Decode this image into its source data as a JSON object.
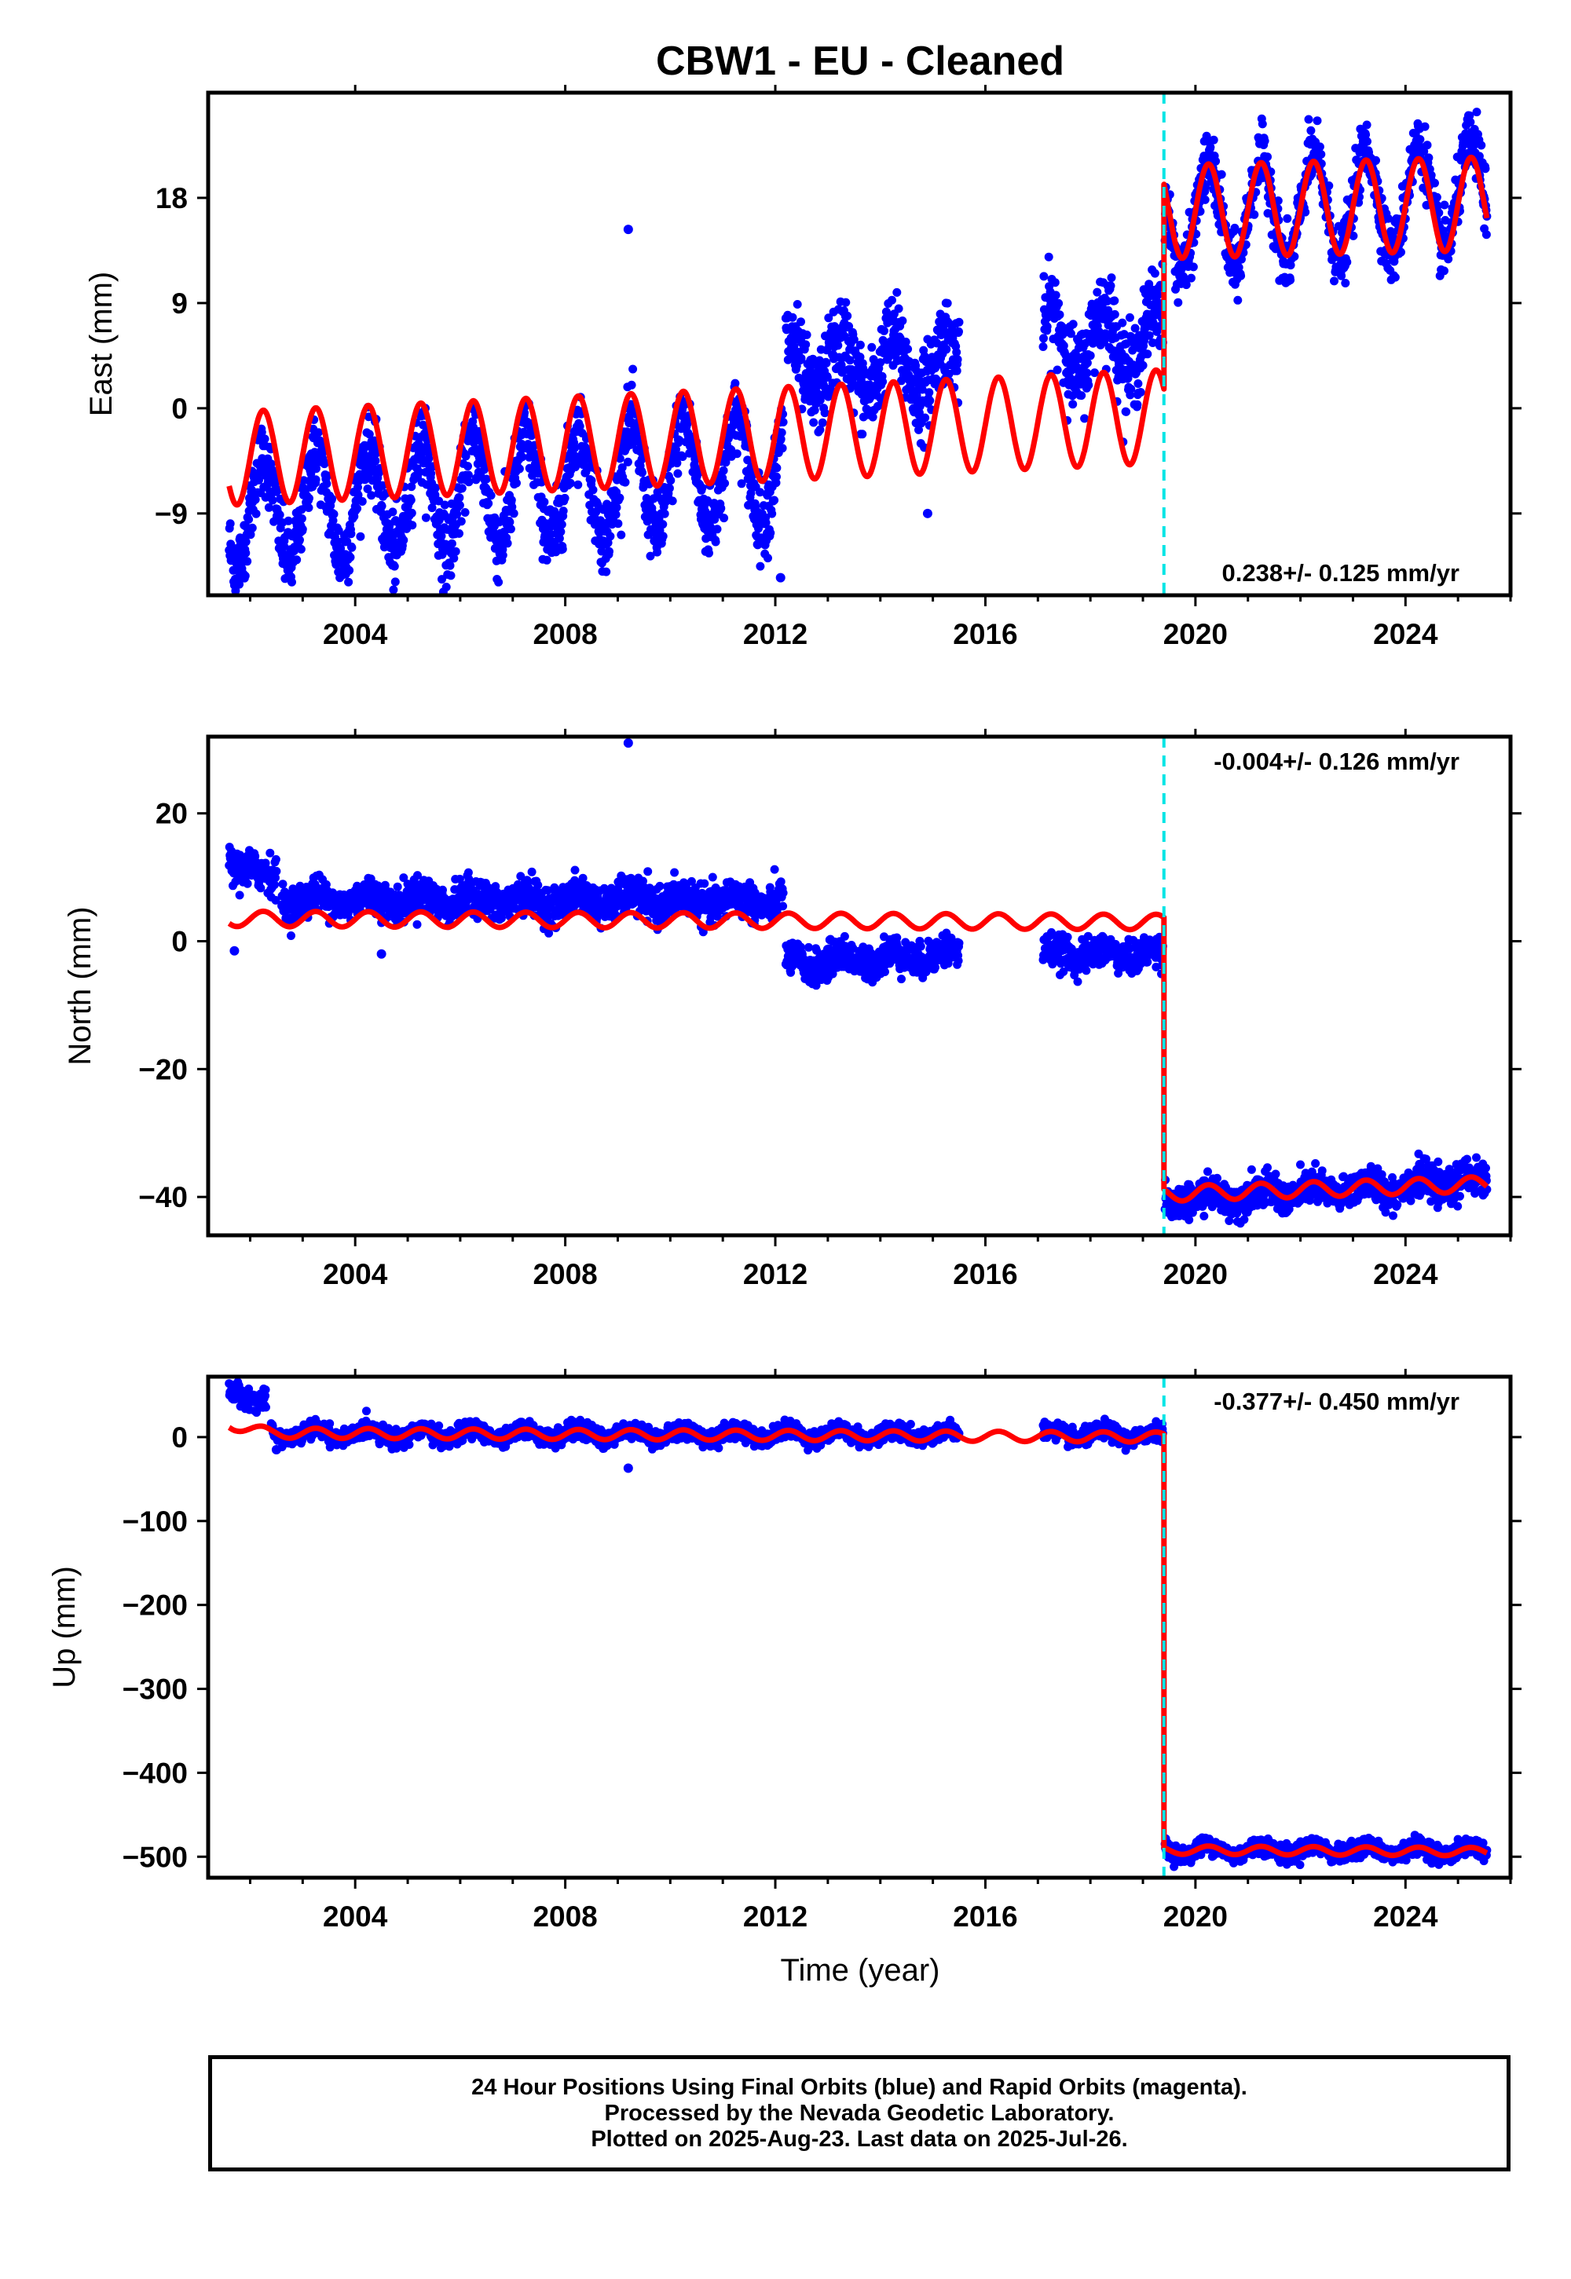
{
  "title": "CBW1  - EU - Cleaned",
  "xlabel": "Time (year)",
  "colors": {
    "data": "#0000ff",
    "model": "#ff0000",
    "offset": "#00e5e5",
    "frame": "#000000"
  },
  "footer": {
    "line1": "24 Hour Positions Using Final Orbits (blue) and Rapid Orbits (magenta).",
    "line2": "Processed by the Nevada Geodetic Laboratory.",
    "line3": "Plotted on 2025-Aug-23. Last data on 2025-Jul-26."
  },
  "chart_data": [
    {
      "type": "scatter",
      "panel": "east",
      "ylabel": "East (mm)",
      "xlim": [
        2001.2,
        2026.0
      ],
      "ylim": [
        -16,
        27
      ],
      "xticks": [
        2004,
        2008,
        2012,
        2016,
        2020,
        2024
      ],
      "yticks": [
        18,
        9,
        0,
        -9
      ],
      "rate_label": "0.238+/- 0.125 mm/yr",
      "rate_position": "bottom-right",
      "offset_epoch": 2019.4,
      "series": [
        {
          "name": "Final Orbits",
          "segments": [
            {
              "x": [
                2001.6,
                2012.15
              ],
              "amplitude": 4.5,
              "trend": [
                -9.0,
                -5.0
              ],
              "spread": 1.6
            },
            {
              "x": [
                2012.2,
                2015.5
              ],
              "amplitude": 2.5,
              "trend": [
                3.5,
                3.5
              ],
              "spread": 1.8
            },
            {
              "x": [
                2017.1,
                2019.38
              ],
              "amplitude": 2.8,
              "trend": [
                5.5,
                6.0
              ],
              "spread": 1.8
            },
            {
              "x": [
                2019.42,
                2025.55
              ],
              "amplitude": 4.5,
              "trend": [
                16.0,
                18.5
              ],
              "spread": 1.3
            }
          ],
          "outliers": [
            [
              2009.2,
              15.3
            ],
            [
              2014.9,
              -9.0
            ],
            [
              2012.1,
              -14.5
            ]
          ]
        }
      ],
      "model": {
        "segments": [
          {
            "x": [
              2001.6,
              2019.4
            ],
            "mean": [
              -4.3,
              -0.7
            ],
            "amplitude": [
              4.0,
              4.0
            ]
          },
          {
            "x": [
              2019.4,
              2025.55
            ],
            "mean": [
              16.8,
              17.5
            ],
            "amplitude": [
              4.0,
              4.0
            ]
          }
        ]
      }
    },
    {
      "type": "scatter",
      "panel": "north",
      "ylabel": "North (mm)",
      "xlim": [
        2001.2,
        2026.0
      ],
      "ylim": [
        -46,
        32
      ],
      "xticks": [
        2004,
        2008,
        2012,
        2016,
        2020,
        2024
      ],
      "yticks": [
        20,
        0,
        -20,
        -40
      ],
      "rate_label": "-0.004+/- 0.126 mm/yr",
      "rate_position": "top-right",
      "offset_epoch": 2019.4,
      "series": [
        {
          "name": "Final Orbits",
          "segments": [
            {
              "x": [
                2001.6,
                2002.5
              ],
              "amplitude": 0.5,
              "trend": [
                12.0,
                10.0
              ],
              "spread": 1.5
            },
            {
              "x": [
                2002.6,
                2012.15
              ],
              "amplitude": 1.0,
              "trend": [
                6.5,
                6.3
              ],
              "spread": 1.4
            },
            {
              "x": [
                2012.2,
                2015.5
              ],
              "amplitude": 1.0,
              "trend": [
                -3.5,
                -2.0
              ],
              "spread": 1.3
            },
            {
              "x": [
                2017.1,
                2019.38
              ],
              "amplitude": 0.8,
              "trend": [
                -2.0,
                -2.0
              ],
              "spread": 1.2
            },
            {
              "x": [
                2019.42,
                2025.55
              ],
              "amplitude": 1.0,
              "trend": [
                -40.5,
                -37.5
              ],
              "spread": 1.3
            }
          ],
          "outliers": [
            [
              2009.2,
              31.0
            ],
            [
              2001.7,
              -1.5
            ],
            [
              2004.5,
              -2.0
            ]
          ]
        }
      ],
      "model": {
        "segments": [
          {
            "x": [
              2001.6,
              2019.4
            ],
            "mean": [
              3.5,
              3.0
            ],
            "amplitude": [
              1.2,
              1.2
            ]
          },
          {
            "x": [
              2019.4,
              2025.55
            ],
            "mean": [
              -39.5,
              -38.0
            ],
            "amplitude": [
              1.2,
              1.2
            ]
          }
        ]
      }
    },
    {
      "type": "scatter",
      "panel": "up",
      "ylabel": "Up (mm)",
      "xlim": [
        2001.2,
        2026.0
      ],
      "ylim": [
        -525,
        72
      ],
      "xticks": [
        2004,
        2008,
        2012,
        2016,
        2020,
        2024
      ],
      "yticks": [
        0,
        -100,
        -200,
        -300,
        -400,
        -500
      ],
      "rate_label": "-0.377+/- 0.450 mm/yr",
      "rate_position": "top-right",
      "offset_epoch": 2019.4,
      "series": [
        {
          "name": "Final Orbits",
          "segments": [
            {
              "x": [
                2001.6,
                2002.3
              ],
              "amplitude": 0,
              "trend": [
                55.0,
                40.0
              ],
              "spread": 6
            },
            {
              "x": [
                2002.4,
                2015.5
              ],
              "amplitude": 6,
              "trend": [
                4.0,
                3.0
              ],
              "spread": 5
            },
            {
              "x": [
                2017.1,
                2019.38
              ],
              "amplitude": 6,
              "trend": [
                3.0,
                2.0
              ],
              "spread": 5
            },
            {
              "x": [
                2019.42,
                2025.55
              ],
              "amplitude": 6,
              "trend": [
                -492,
                -493
              ],
              "spread": 5
            }
          ],
          "outliers": [
            [
              2009.2,
              -37.0
            ],
            [
              2002.5,
              -15.0
            ]
          ]
        }
      ],
      "model": {
        "segments": [
          {
            "x": [
              2001.6,
              2019.4
            ],
            "mean": [
              5.0,
              0.0
            ],
            "amplitude": [
              6.0,
              6.0
            ],
            "start_level": 15
          },
          {
            "x": [
              2019.4,
              2025.55
            ],
            "mean": [
              -492,
              -494
            ],
            "amplitude": [
              5.0,
              5.0
            ]
          }
        ]
      }
    }
  ]
}
